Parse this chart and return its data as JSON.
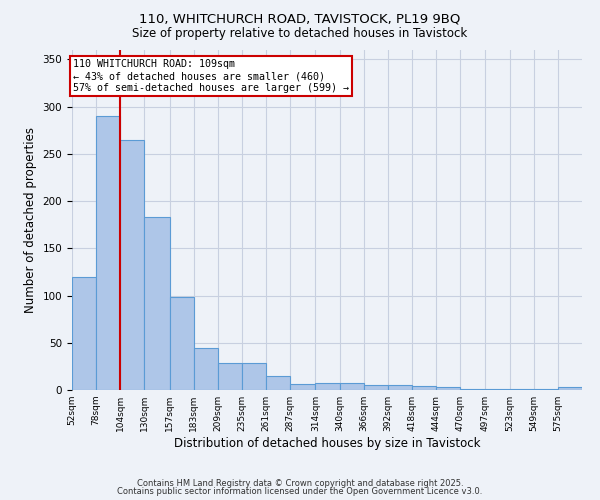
{
  "title_line1": "110, WHITCHURCH ROAD, TAVISTOCK, PL19 9BQ",
  "title_line2": "Size of property relative to detached houses in Tavistock",
  "xlabel": "Distribution of detached houses by size in Tavistock",
  "ylabel": "Number of detached properties",
  "bar_edges": [
    52,
    78,
    104,
    130,
    157,
    183,
    209,
    235,
    261,
    287,
    314,
    340,
    366,
    392,
    418,
    444,
    470,
    497,
    523,
    549,
    575
  ],
  "bar_labels": [
    "52sqm",
    "78sqm",
    "104sqm",
    "130sqm",
    "157sqm",
    "183sqm",
    "209sqm",
    "235sqm",
    "261sqm",
    "287sqm",
    "314sqm",
    "340sqm",
    "366sqm",
    "392sqm",
    "418sqm",
    "444sqm",
    "470sqm",
    "497sqm",
    "523sqm",
    "549sqm",
    "575sqm"
  ],
  "bar_heights": [
    120,
    290,
    265,
    183,
    98,
    45,
    29,
    29,
    15,
    6,
    7,
    7,
    5,
    5,
    4,
    3,
    1,
    1,
    1,
    1,
    3
  ],
  "bar_color": "#aec6e8",
  "bar_edge_color": "#5b9bd5",
  "vline_x": 104,
  "vline_color": "#cc0000",
  "annotation_title": "110 WHITCHURCH ROAD: 109sqm",
  "annotation_line2": "← 43% of detached houses are smaller (460)",
  "annotation_line3": "57% of semi-detached houses are larger (599) →",
  "annotation_box_color": "#cc0000",
  "ylim": [
    0,
    360
  ],
  "yticks": [
    0,
    50,
    100,
    150,
    200,
    250,
    300,
    350
  ],
  "footer_line1": "Contains HM Land Registry data © Crown copyright and database right 2025.",
  "footer_line2": "Contains public sector information licensed under the Open Government Licence v3.0.",
  "background_color": "#eef2f8",
  "grid_color": "#c8d0e0",
  "ann_fontsize": 7.2,
  "title_fontsize1": 9.5,
  "title_fontsize2": 8.5,
  "xlabel_fontsize": 8.5,
  "ylabel_fontsize": 8.5,
  "tick_fontsize": 7.5,
  "xtick_fontsize": 6.5,
  "footer_fontsize": 6.0
}
